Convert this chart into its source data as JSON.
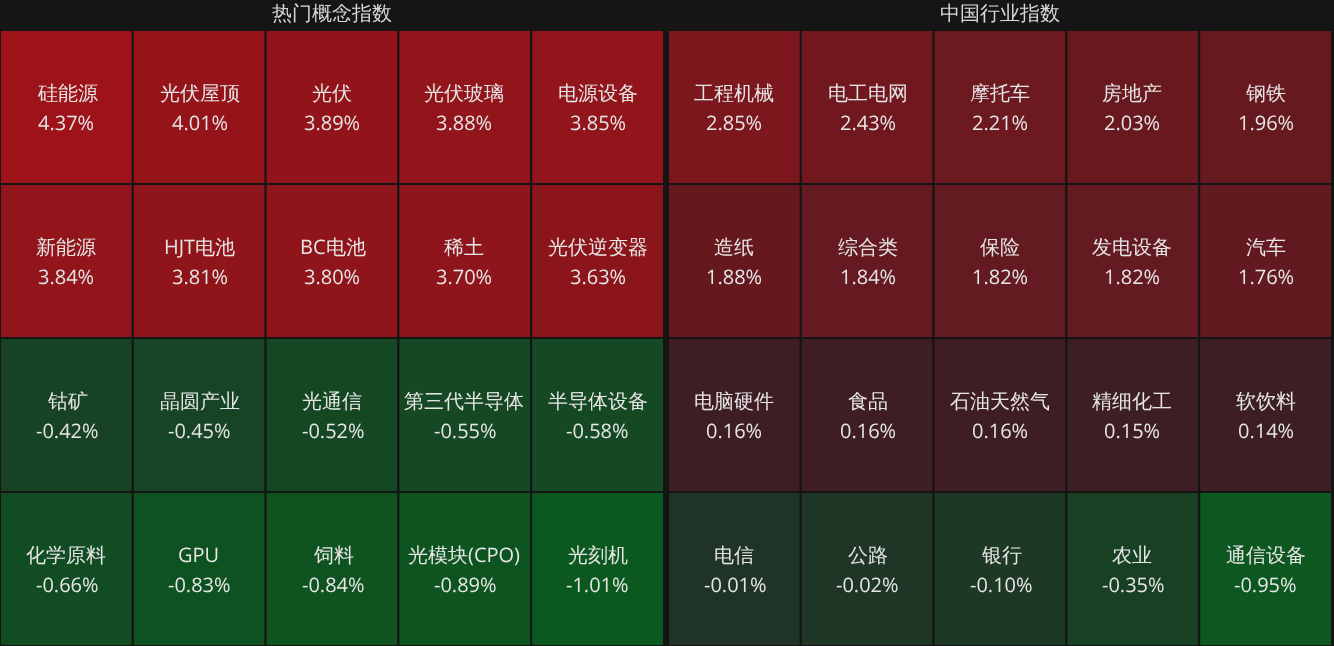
{
  "chart_data": [
    {
      "type": "other",
      "title": "热门概念指数",
      "categories": [
        "硅能源",
        "光伏屋顶",
        "光伏",
        "光伏玻璃",
        "电源设备",
        "新能源",
        "HJT电池",
        "BC电池",
        "稀土",
        "光伏逆变器",
        "钴矿",
        "晶圆产业",
        "光通信",
        "第三代半导体",
        "半导体设备",
        "化学原料",
        "GPU",
        "饲料",
        "光模块(CPO)",
        "光刻机"
      ],
      "values": [
        4.37,
        4.01,
        3.89,
        3.88,
        3.85,
        3.84,
        3.81,
        3.8,
        3.7,
        3.63,
        -0.42,
        -0.45,
        -0.52,
        -0.55,
        -0.58,
        -0.66,
        -0.83,
        -0.84,
        -0.89,
        -1.01
      ],
      "value_labels": [
        "4.37%",
        "4.01%",
        "3.89%",
        "3.88%",
        "3.85%",
        "3.84%",
        "3.81%",
        "3.80%",
        "3.70%",
        "3.63%",
        "-0.42%",
        "-0.45%",
        "-0.52%",
        "-0.55%",
        "-0.58%",
        "-0.66%",
        "-0.83%",
        "-0.84%",
        "-0.89%",
        "-1.01%"
      ]
    },
    {
      "type": "other",
      "title": "中国行业指数",
      "categories": [
        "工程机械",
        "电工电网",
        "摩托车",
        "房地产",
        "钢铁",
        "造纸",
        "综合类",
        "保险",
        "发电设备",
        "汽车",
        "电脑硬件",
        "食品",
        "石油天然气",
        "精细化工",
        "软饮料",
        "电信",
        "公路",
        "银行",
        "农业",
        "通信设备"
      ],
      "values": [
        2.85,
        2.43,
        2.21,
        2.03,
        1.96,
        1.88,
        1.84,
        1.82,
        1.82,
        1.76,
        0.16,
        0.16,
        0.16,
        0.15,
        0.14,
        -0.01,
        -0.02,
        -0.1,
        -0.35,
        -0.95
      ],
      "value_labels": [
        "2.85%",
        "2.43%",
        "2.21%",
        "2.03%",
        "1.96%",
        "1.88%",
        "1.84%",
        "1.82%",
        "1.82%",
        "1.76%",
        "0.16%",
        "0.16%",
        "0.16%",
        "0.15%",
        "0.14%",
        "-0.01%",
        "-0.02%",
        "-0.10%",
        "-0.35%",
        "-0.95%"
      ]
    }
  ]
}
